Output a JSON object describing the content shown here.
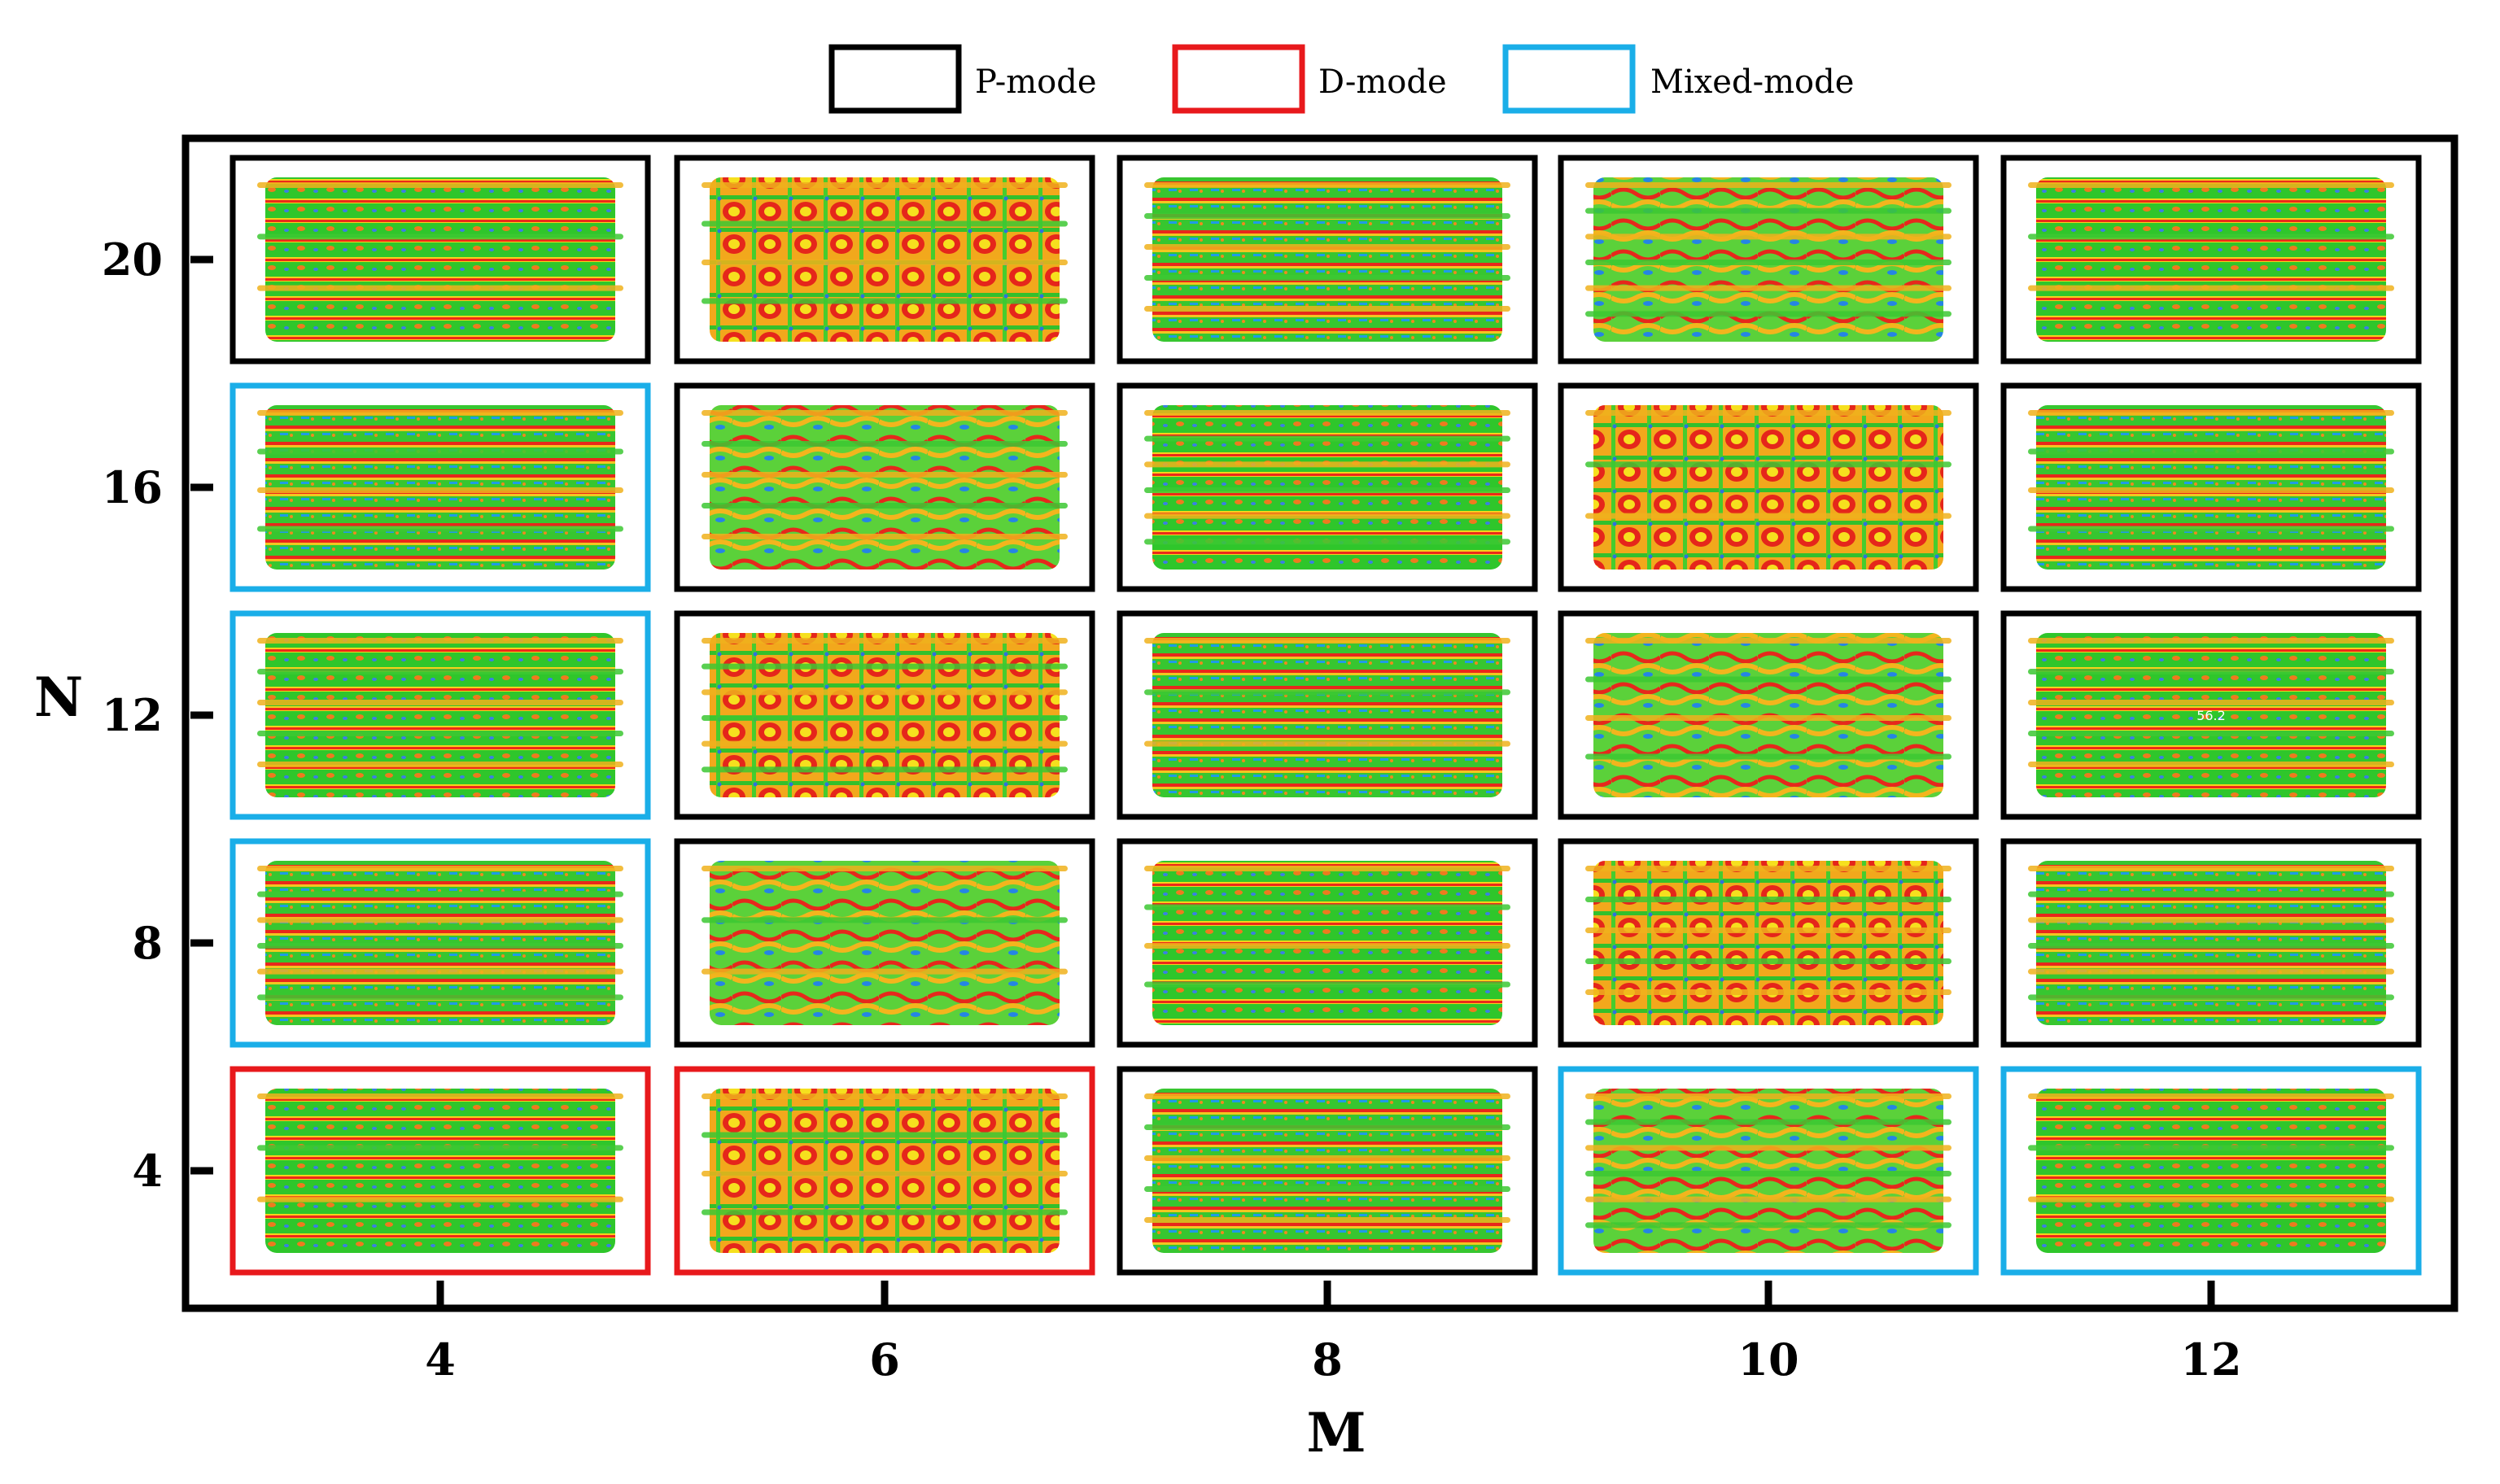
{
  "chart_data": {
    "type": "heatmap",
    "title": "",
    "xlabel": "M",
    "ylabel": "N",
    "x": [
      "4",
      "6",
      "8",
      "10",
      "12"
    ],
    "y": [
      "20",
      "16",
      "12",
      "8",
      "4"
    ],
    "legend": [
      {
        "key": "P",
        "label": "P-mode",
        "color": "#000000"
      },
      {
        "key": "D",
        "label": "D-mode",
        "color": "#e8191c"
      },
      {
        "key": "X",
        "label": "Mixed-mode",
        "color": "#1aaee8"
      }
    ],
    "grid": [
      [
        "P",
        "P",
        "P",
        "P",
        "P"
      ],
      [
        "X",
        "P",
        "P",
        "P",
        "P"
      ],
      [
        "X",
        "P",
        "P",
        "P",
        "P"
      ],
      [
        "X",
        "P",
        "P",
        "P",
        "P"
      ],
      [
        "D",
        "D",
        "P",
        "X",
        "X"
      ]
    ],
    "annotations": [
      {
        "row": 2,
        "col": 4,
        "text": "56.2"
      }
    ]
  }
}
